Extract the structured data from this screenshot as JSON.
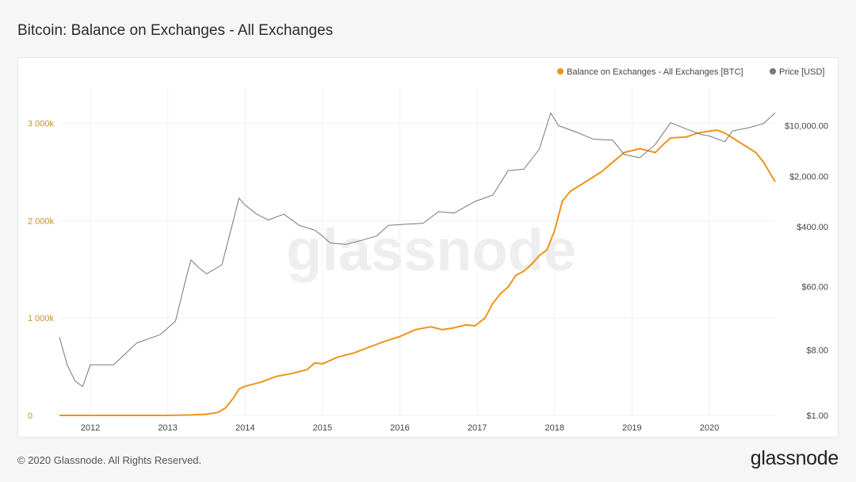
{
  "title": "Bitcoin: Balance on Exchanges - All Exchanges",
  "footer": {
    "copyright": "© 2020 Glassnode. All Rights Reserved.",
    "logo": "glassnode"
  },
  "watermark": "glassnode",
  "colors": {
    "balance": "#f0931a",
    "price": "#777777",
    "left_axis_text": "#c8912e",
    "grid": "#f1f1f1"
  },
  "chart_data": {
    "type": "line",
    "title": "Bitcoin: Balance on Exchanges - All Exchanges",
    "legend_position": "top-right",
    "grid": true,
    "x_tick_labels": [
      "2012",
      "2013",
      "2014",
      "2015",
      "2016",
      "2017",
      "2018",
      "2019",
      "2020"
    ],
    "x_range": [
      2011.6,
      2020.85
    ],
    "y_left": {
      "ticks": [
        {
          "value": 0,
          "label": "0"
        },
        {
          "value": 1000,
          "label": "1 000k"
        },
        {
          "value": 2000,
          "label": "2 000k"
        },
        {
          "value": 3000,
          "label": "3 000k"
        }
      ],
      "range": [
        0,
        3200
      ],
      "unit": "k BTC"
    },
    "y_right": {
      "scale": "log",
      "ticks": [
        {
          "value": 1,
          "label": "$1.00"
        },
        {
          "value": 8,
          "label": "$8.00"
        },
        {
          "value": 60,
          "label": "$60.00"
        },
        {
          "value": 400,
          "label": "$400.00"
        },
        {
          "value": 2000,
          "label": "$2,000.00"
        },
        {
          "value": 10000,
          "label": "$10,000.00"
        }
      ],
      "range": [
        1,
        20000
      ]
    },
    "series": [
      {
        "name": "Balance on Exchanges - All Exchanges [BTC]",
        "axis": "left",
        "x": [
          2011.6,
          2012.5,
          2013.0,
          2013.3,
          2013.5,
          2013.65,
          2013.75,
          2013.85,
          2013.92,
          2014.0,
          2014.2,
          2014.4,
          2014.6,
          2014.8,
          2014.9,
          2015.0,
          2015.2,
          2015.4,
          2015.6,
          2015.8,
          2016.0,
          2016.2,
          2016.4,
          2016.55,
          2016.7,
          2016.85,
          2016.97,
          2017.1,
          2017.2,
          2017.3,
          2017.4,
          2017.5,
          2017.6,
          2017.7,
          2017.8,
          2017.9,
          2018.0,
          2018.1,
          2018.2,
          2018.4,
          2018.6,
          2018.75,
          2018.9,
          2019.1,
          2019.3,
          2019.4,
          2019.5,
          2019.7,
          2019.85,
          2020.0,
          2020.1,
          2020.2,
          2020.4,
          2020.6,
          2020.7,
          2020.85
        ],
        "values": [
          0,
          0,
          0,
          5,
          12,
          30,
          80,
          180,
          270,
          300,
          340,
          400,
          430,
          470,
          540,
          530,
          600,
          640,
          700,
          760,
          810,
          880,
          910,
          880,
          900,
          930,
          920,
          1000,
          1150,
          1250,
          1320,
          1440,
          1480,
          1550,
          1640,
          1700,
          1900,
          2200,
          2300,
          2400,
          2500,
          2600,
          2700,
          2740,
          2700,
          2780,
          2850,
          2860,
          2900,
          2920,
          2930,
          2900,
          2800,
          2700,
          2600,
          2400
        ]
      },
      {
        "name": "Price [USD]",
        "axis": "right",
        "x": [
          2011.6,
          2011.7,
          2011.8,
          2011.9,
          2012.0,
          2012.3,
          2012.6,
          2012.9,
          2013.1,
          2013.25,
          2013.3,
          2013.4,
          2013.5,
          2013.7,
          2013.85,
          2013.92,
          2014.0,
          2014.15,
          2014.3,
          2014.5,
          2014.7,
          2014.9,
          2015.0,
          2015.1,
          2015.3,
          2015.5,
          2015.7,
          2015.85,
          2016.0,
          2016.3,
          2016.5,
          2016.7,
          2016.97,
          2017.2,
          2017.4,
          2017.6,
          2017.8,
          2017.95,
          2018.05,
          2018.3,
          2018.5,
          2018.75,
          2018.9,
          2019.1,
          2019.3,
          2019.5,
          2019.7,
          2019.9,
          2020.0,
          2020.2,
          2020.3,
          2020.5,
          2020.7,
          2020.85
        ],
        "values": [
          12,
          5,
          3,
          2.5,
          5,
          5,
          10,
          13,
          20,
          90,
          140,
          110,
          90,
          120,
          500,
          1000,
          800,
          600,
          500,
          600,
          420,
          360,
          300,
          240,
          230,
          260,
          300,
          420,
          430,
          450,
          650,
          620,
          900,
          1100,
          2400,
          2500,
          4700,
          15000,
          10000,
          8000,
          6500,
          6300,
          4000,
          3600,
          5500,
          11000,
          9000,
          7500,
          7200,
          6000,
          8500,
          9300,
          10700,
          15000
        ]
      }
    ]
  }
}
